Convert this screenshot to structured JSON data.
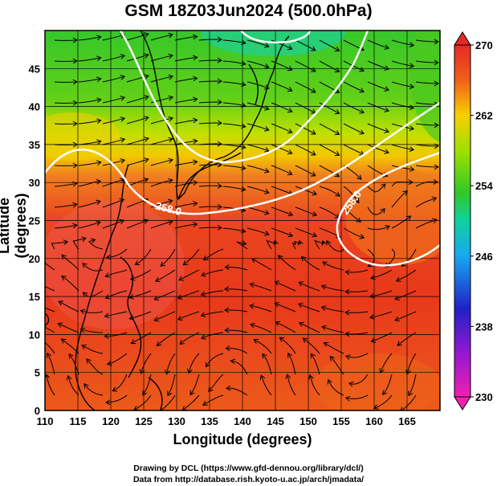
{
  "title": "GSM 18Z03Jun2024 (500.0hPa)",
  "xlabel": "Longitude (degrees)",
  "ylabel": "Latitude  (degrees)",
  "credits": {
    "line1": "Drawing by DCL (https://www.gfd-dennou.org/library/dcl/)",
    "line2": "Data from http://database.rish.kyoto-u.ac.jp/arch/jmadata/"
  },
  "chart_data": {
    "type": "heatmap",
    "field": "temperature with wind streamlines",
    "xlim": [
      110,
      170
    ],
    "ylim": [
      0,
      50
    ],
    "x_ticks": [
      "110",
      "115",
      "120",
      "125",
      "130",
      "135",
      "140",
      "145",
      "150",
      "155",
      "160",
      "165"
    ],
    "y_ticks": [
      "0",
      "5",
      "10",
      "15",
      "20",
      "25",
      "30",
      "35",
      "40",
      "45"
    ],
    "colorbar_ticks": [
      "230",
      "238",
      "246",
      "254",
      "262",
      "270"
    ],
    "colorbar_range": [
      230,
      270
    ],
    "contour_labels": [
      "258.0",
      "258.0"
    ],
    "grid": true,
    "colors": {
      "warm": "#e8341c",
      "orange": "#f08a1a",
      "yellow": "#e8e400",
      "green": "#3cc81e",
      "teal": "#20c8a0",
      "blue": "#1a4ad8",
      "magenta": "#e020c0"
    }
  }
}
